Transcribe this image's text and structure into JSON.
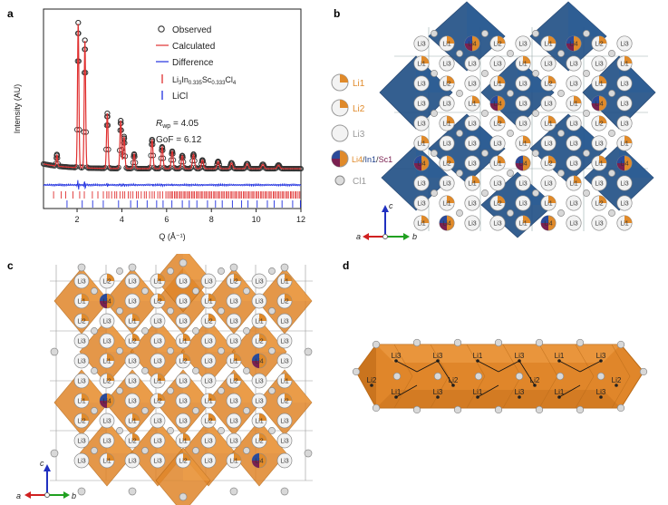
{
  "panels": {
    "a": {
      "label": "a",
      "legend": {
        "observed": "Observed",
        "calculated": "Calculated",
        "difference": "Difference",
        "phase1_parts": [
          "Li",
          "3",
          "In",
          "0.335",
          "Sc",
          "0.333",
          "Cl",
          "4"
        ],
        "phase2": "LiCl"
      },
      "stats": {
        "rwp_symbol": "R",
        "rwp_sub": "wp",
        "rwp_value": " = 4.05",
        "gof": "GoF = 6.12"
      },
      "colors": {
        "observed": "#333333",
        "calculated": "#e03030",
        "difference": "#2030e0",
        "tick1": "#e03030",
        "tick2": "#2030e0"
      }
    },
    "b": {
      "label": "b",
      "legend": [
        "Li1",
        "Li2",
        "Li3",
        "Li4/In1/Sc1",
        "Cl1"
      ],
      "legend_parts_li4": [
        "Li4",
        "/",
        "In1",
        "/",
        "Sc1"
      ],
      "axes": {
        "c": "c",
        "a": "a",
        "b": "b"
      },
      "colors": {
        "polyhedra": "#1f4e85",
        "li": "#e08a2a",
        "sc": "#7a2050"
      }
    },
    "c": {
      "label": "c",
      "axes": {
        "c": "c",
        "a": "a",
        "b": "b"
      },
      "colors": {
        "polyhedra": "#e0862a"
      }
    },
    "d": {
      "label": "d",
      "colors": {
        "polyhedra": "#e0862a"
      }
    }
  },
  "chart_data": {
    "type": "line",
    "title": "",
    "xlabel": "Q (Å⁻¹)",
    "ylabel": "Intensity (AU)",
    "xlim": [
      0.5,
      12
    ],
    "xticks": [
      2,
      4,
      6,
      8,
      10,
      12
    ],
    "xtick_labels": [
      "2",
      "4",
      "6",
      "8",
      "10",
      "12"
    ],
    "legend_position": "top-right",
    "peaks": [
      {
        "q": 1.1,
        "intensity": 0.08
      },
      {
        "q": 2.05,
        "intensity": 1.0
      },
      {
        "q": 2.35,
        "intensity": 0.88
      },
      {
        "q": 3.35,
        "intensity": 0.38
      },
      {
        "q": 3.95,
        "intensity": 0.33
      },
      {
        "q": 4.1,
        "intensity": 0.22
      },
      {
        "q": 4.55,
        "intensity": 0.1
      },
      {
        "q": 5.35,
        "intensity": 0.2
      },
      {
        "q": 5.8,
        "intensity": 0.15
      },
      {
        "q": 6.25,
        "intensity": 0.12
      },
      {
        "q": 6.7,
        "intensity": 0.09
      },
      {
        "q": 7.2,
        "intensity": 0.1
      },
      {
        "q": 7.6,
        "intensity": 0.06
      },
      {
        "q": 8.3,
        "intensity": 0.05
      },
      {
        "q": 8.9,
        "intensity": 0.04
      },
      {
        "q": 9.6,
        "intensity": 0.035
      },
      {
        "q": 10.3,
        "intensity": 0.03
      },
      {
        "q": 11.0,
        "intensity": 0.025
      }
    ],
    "series": [
      {
        "name": "Observed",
        "style": "open-circles"
      },
      {
        "name": "Calculated",
        "style": "line"
      },
      {
        "name": "Difference",
        "style": "line"
      }
    ]
  }
}
